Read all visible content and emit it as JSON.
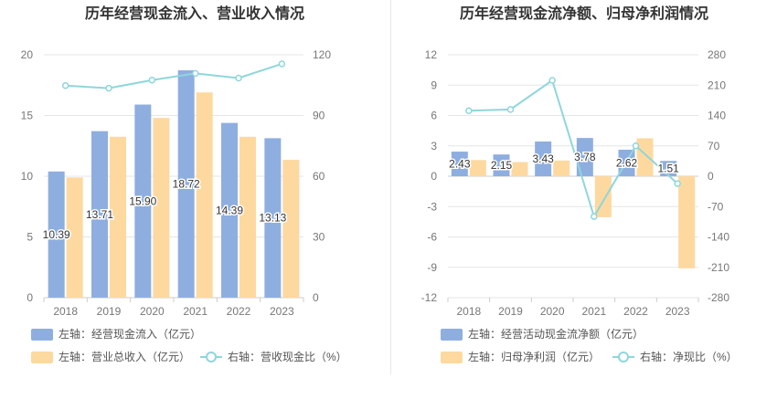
{
  "chart_data": [
    {
      "type": "bar",
      "title": "历年经营现金流入、营业收入情况",
      "categories": [
        "2018",
        "2019",
        "2020",
        "2021",
        "2022",
        "2023"
      ],
      "left_axis": {
        "min": 0,
        "max": 20,
        "ticks": [
          "0",
          "5",
          "10",
          "15",
          "20"
        ]
      },
      "right_axis": {
        "min": 0,
        "max": 120,
        "ticks": [
          "0",
          "30",
          "60",
          "90",
          "120"
        ]
      },
      "series": [
        {
          "name": "左轴：经营现金流入（亿元）",
          "kind": "bar",
          "axis": "left",
          "color": "#8eaee0",
          "values": [
            10.39,
            13.71,
            15.9,
            18.72,
            14.39,
            13.13
          ],
          "labels": [
            "10.39",
            "13.71",
            "15.90",
            "18.72",
            "14.39",
            "13.13"
          ]
        },
        {
          "name": "左轴：营业总收入（亿元）",
          "kind": "bar",
          "axis": "left",
          "color": "#fdd9a0",
          "values": [
            9.9,
            13.25,
            14.8,
            16.9,
            13.25,
            11.35
          ]
        },
        {
          "name": "右轴：营收现金比（%）",
          "kind": "line",
          "axis": "right",
          "color": "#8fd6dc",
          "values": [
            104.8,
            103.5,
            107.5,
            110.8,
            108.5,
            115.5
          ]
        }
      ],
      "grid": true
    },
    {
      "type": "bar",
      "title": "历年经营现金流净额、归母净利润情况",
      "categories": [
        "2018",
        "2019",
        "2020",
        "2021",
        "2022",
        "2023"
      ],
      "left_axis": {
        "min": -12,
        "max": 12,
        "ticks": [
          "-12",
          "-9",
          "-6",
          "-3",
          "0",
          "3",
          "6",
          "9",
          "12"
        ]
      },
      "right_axis": {
        "min": -280,
        "max": 280,
        "ticks": [
          "-280",
          "-210",
          "-140",
          "-70",
          "0",
          "70",
          "140",
          "210",
          "280"
        ]
      },
      "series": [
        {
          "name": "左轴：经营活动现金流净额（亿元）",
          "kind": "bar",
          "axis": "left",
          "color": "#8eaee0",
          "values": [
            2.43,
            2.15,
            3.43,
            3.78,
            2.62,
            1.51
          ],
          "labels": [
            "2.43",
            "2.15",
            "3.43",
            "3.78",
            "2.62",
            "1.51"
          ]
        },
        {
          "name": "左轴：归母净利润（亿元）",
          "kind": "bar",
          "axis": "left",
          "color": "#fdd9a0",
          "values": [
            1.6,
            1.4,
            1.55,
            -4.05,
            3.75,
            -9.1
          ]
        },
        {
          "name": "右轴：净现比（%）",
          "kind": "line",
          "axis": "right",
          "color": "#8fd6dc",
          "values": [
            151,
            154,
            221,
            -93,
            70,
            -17
          ]
        }
      ],
      "grid": true
    }
  ]
}
